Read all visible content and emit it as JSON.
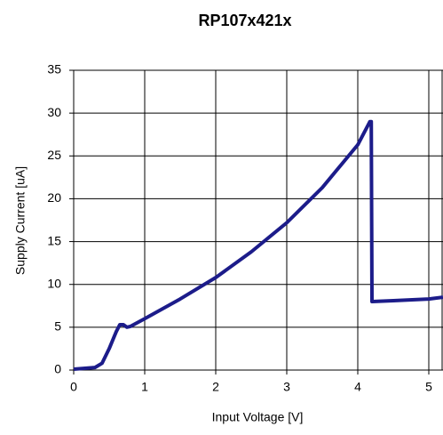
{
  "chart_data": {
    "type": "line",
    "title": "RP107x421x",
    "x_label": "Input Voltage [V]",
    "y_label": "Supply Current [uA]",
    "x": [
      0,
      0.3,
      0.4,
      0.5,
      0.6,
      0.65,
      0.7,
      0.75,
      0.8,
      1.0,
      1.5,
      2.0,
      2.5,
      3.0,
      3.5,
      4.0,
      4.17,
      4.19,
      4.2,
      4.5,
      5.0,
      5.2
    ],
    "values": [
      0.1,
      0.3,
      0.8,
      2.5,
      4.5,
      5.3,
      5.3,
      5.0,
      5.1,
      6.0,
      8.3,
      10.8,
      13.8,
      17.2,
      21.3,
      26.3,
      29.0,
      29.0,
      8.0,
      8.1,
      8.3,
      8.5
    ],
    "color": "#1c1c8a",
    "xlim": [
      0,
      5.2
    ],
    "ylim": [
      0,
      35
    ],
    "xticks": [
      0,
      1,
      2,
      3,
      4,
      5
    ],
    "yticks": [
      0,
      5,
      10,
      15,
      20,
      25,
      30,
      35
    ],
    "grid": true
  }
}
